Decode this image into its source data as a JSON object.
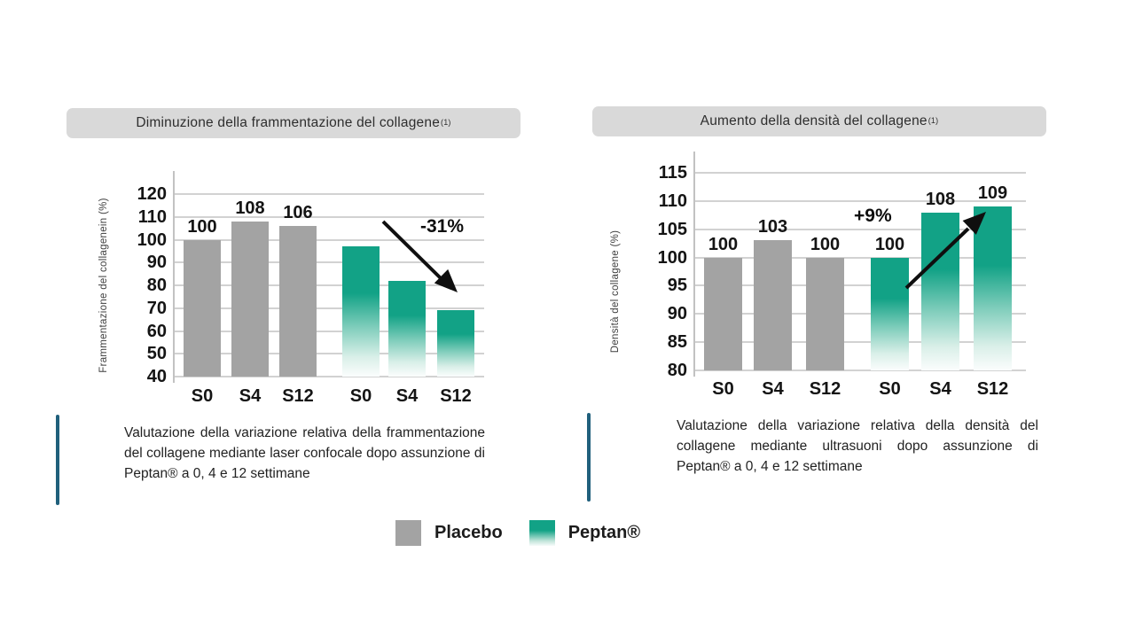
{
  "colors": {
    "placebo": "#a3a3a3",
    "peptan_green": "#12a286",
    "header_background": "#d9d9d9",
    "accent_bar": "#20607c",
    "gridline": "#d2d2d2",
    "arrow": "#0f0f0f"
  },
  "legend": {
    "items": [
      {
        "name": "placebo",
        "label": "Placebo"
      },
      {
        "name": "peptan",
        "label": "Peptan®"
      }
    ]
  },
  "chart_data": [
    {
      "type": "bar",
      "title": "Diminuzione della frammentazione del collagene",
      "title_superscript": "(1)",
      "ylabel": "Frammentazione del collagenein (%)",
      "xlabel": "",
      "categories": [
        "S0",
        "S4",
        "S12",
        "S0",
        "S4",
        "S12"
      ],
      "series": [
        {
          "name": "Placebo",
          "values": [
            100,
            108,
            106,
            null,
            null,
            null
          ]
        },
        {
          "name": "Peptan®",
          "values": [
            null,
            null,
            null,
            97,
            82,
            69
          ]
        }
      ],
      "bar_labels": [
        "100",
        "108",
        "106",
        "",
        "",
        ""
      ],
      "ylim": [
        40,
        120
      ],
      "ytick_step": 10,
      "grid": true,
      "legend_position": "bottom-shared",
      "annotation": {
        "text": "-31%",
        "direction": "down-right"
      },
      "caption": "Valutazione della variazione relativa della frammentazione del collagene mediante laser confocale dopo assunzione di Peptan® a 0, 4 e 12 settimane"
    },
    {
      "type": "bar",
      "title": "Aumento della densità  del collagene",
      "title_superscript": "(1)",
      "ylabel": "Densità del collagene (%)",
      "xlabel": "",
      "categories": [
        "S0",
        "S4",
        "S12",
        "S0",
        "S4",
        "S12"
      ],
      "series": [
        {
          "name": "Placebo",
          "values": [
            100,
            103,
            100,
            null,
            null,
            null
          ]
        },
        {
          "name": "Peptan®",
          "values": [
            null,
            null,
            null,
            100,
            108,
            109
          ]
        }
      ],
      "bar_labels": [
        "100",
        "103",
        "100",
        "100",
        "108",
        "109"
      ],
      "ylim": [
        80,
        115
      ],
      "ytick_step": 5,
      "grid": true,
      "legend_position": "bottom-shared",
      "annotation": {
        "text": "+9%",
        "direction": "up-right"
      },
      "caption": "Valutazione della variazione relativa della densità del collagene mediante ultrasuoni dopo assunzione di Peptan® a 0, 4 e 12 settimane"
    }
  ]
}
